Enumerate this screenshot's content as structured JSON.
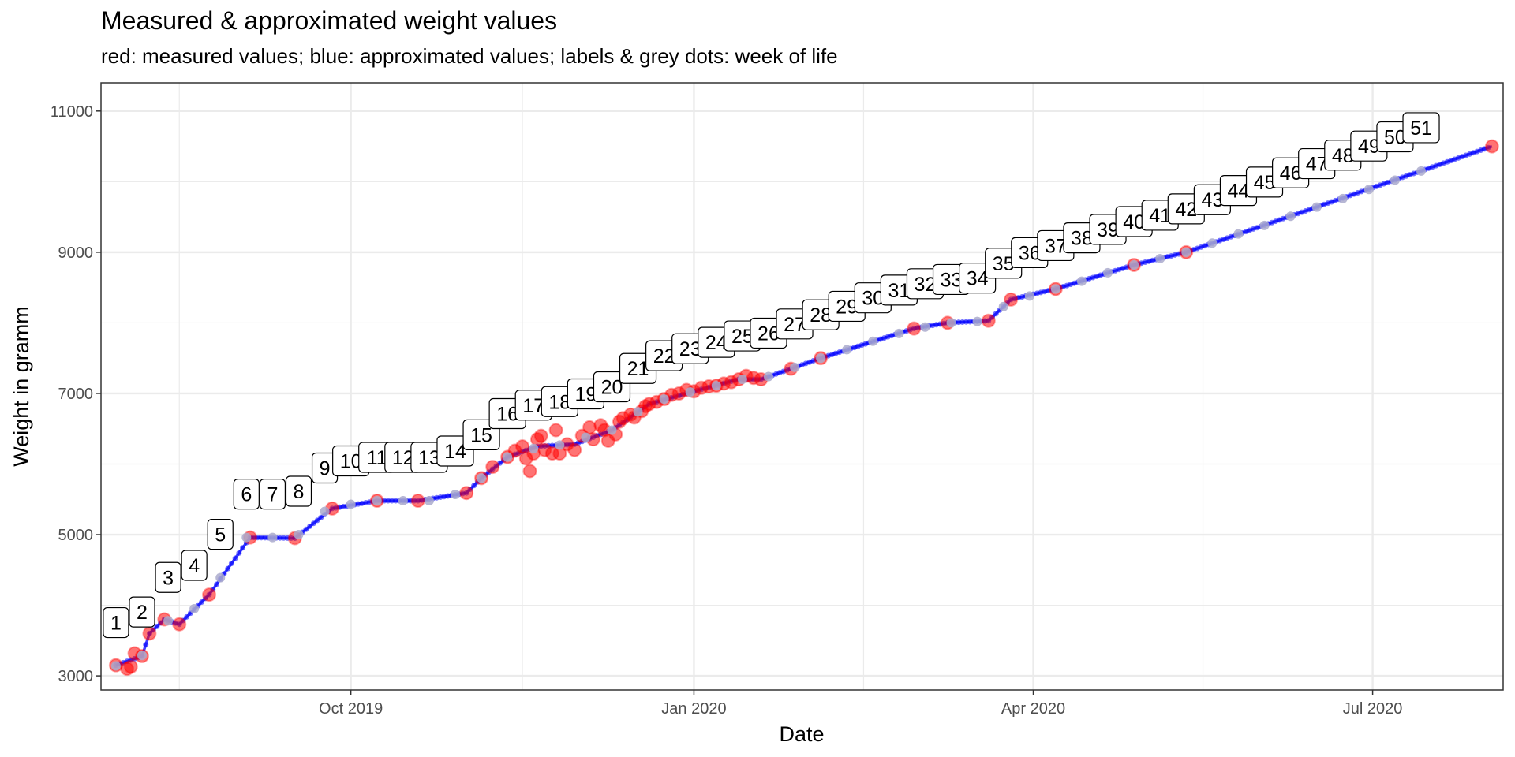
{
  "chart_data": {
    "type": "line",
    "title": "Measured & approximated weight values",
    "subtitle": "red: measured values; blue: approximated values; labels & grey dots: week of life",
    "xlabel": "Date",
    "ylabel": "Weight in gramm",
    "x_axis": {
      "type": "date",
      "range": [
        "2019-07-26",
        "2020-08-05"
      ],
      "ticks": [
        {
          "date": "2019-10-01",
          "label": "Oct 2019"
        },
        {
          "date": "2020-01-01",
          "label": "Jan 2020"
        },
        {
          "date": "2020-04-01",
          "label": "Apr 2020"
        },
        {
          "date": "2020-07-01",
          "label": "Jul 2020"
        }
      ]
    },
    "y_axis": {
      "range": [
        2800,
        11400
      ],
      "ticks": [
        3000,
        5000,
        7000,
        9000,
        11000
      ]
    },
    "grid": true,
    "colors": {
      "measured": "#ff0000",
      "approximated": "#0000ff",
      "week_dot": "#aaaacc",
      "grid": "#ebebeb",
      "panel_border": "#333333"
    },
    "series": [
      {
        "name": "measured",
        "points": [
          {
            "x": "2019-07-30",
            "y": 3150
          },
          {
            "x": "2019-08-02",
            "y": 3100
          },
          {
            "x": "2019-08-03",
            "y": 3130
          },
          {
            "x": "2019-08-04",
            "y": 3320
          },
          {
            "x": "2019-08-06",
            "y": 3280
          },
          {
            "x": "2019-08-08",
            "y": 3600
          },
          {
            "x": "2019-08-12",
            "y": 3800
          },
          {
            "x": "2019-08-16",
            "y": 3730
          },
          {
            "x": "2019-08-24",
            "y": 4150
          },
          {
            "x": "2019-09-04",
            "y": 4960
          },
          {
            "x": "2019-09-16",
            "y": 4950
          },
          {
            "x": "2019-09-26",
            "y": 5370
          },
          {
            "x": "2019-10-08",
            "y": 5480
          },
          {
            "x": "2019-10-19",
            "y": 5480
          },
          {
            "x": "2019-11-01",
            "y": 5590
          },
          {
            "x": "2019-11-05",
            "y": 5800
          },
          {
            "x": "2019-11-08",
            "y": 5960
          },
          {
            "x": "2019-11-12",
            "y": 6100
          },
          {
            "x": "2019-11-14",
            "y": 6190
          },
          {
            "x": "2019-11-16",
            "y": 6250
          },
          {
            "x": "2019-11-17",
            "y": 6080
          },
          {
            "x": "2019-11-18",
            "y": 5900
          },
          {
            "x": "2019-11-19",
            "y": 6150
          },
          {
            "x": "2019-11-20",
            "y": 6350
          },
          {
            "x": "2019-11-21",
            "y": 6400
          },
          {
            "x": "2019-11-22",
            "y": 6200
          },
          {
            "x": "2019-11-24",
            "y": 6150
          },
          {
            "x": "2019-11-25",
            "y": 6480
          },
          {
            "x": "2019-11-26",
            "y": 6150
          },
          {
            "x": "2019-11-28",
            "y": 6280
          },
          {
            "x": "2019-11-30",
            "y": 6200
          },
          {
            "x": "2019-12-02",
            "y": 6400
          },
          {
            "x": "2019-12-04",
            "y": 6520
          },
          {
            "x": "2019-12-05",
            "y": 6350
          },
          {
            "x": "2019-12-07",
            "y": 6550
          },
          {
            "x": "2019-12-08",
            "y": 6480
          },
          {
            "x": "2019-12-09",
            "y": 6330
          },
          {
            "x": "2019-12-11",
            "y": 6420
          },
          {
            "x": "2019-12-12",
            "y": 6600
          },
          {
            "x": "2019-12-13",
            "y": 6650
          },
          {
            "x": "2019-12-15",
            "y": 6700
          },
          {
            "x": "2019-12-16",
            "y": 6660
          },
          {
            "x": "2019-12-18",
            "y": 6750
          },
          {
            "x": "2019-12-19",
            "y": 6820
          },
          {
            "x": "2019-12-20",
            "y": 6850
          },
          {
            "x": "2019-12-22",
            "y": 6880
          },
          {
            "x": "2019-12-24",
            "y": 6920
          },
          {
            "x": "2019-12-26",
            "y": 6980
          },
          {
            "x": "2019-12-28",
            "y": 7000
          },
          {
            "x": "2019-12-30",
            "y": 7050
          },
          {
            "x": "2020-01-01",
            "y": 7030
          },
          {
            "x": "2020-01-03",
            "y": 7080
          },
          {
            "x": "2020-01-05",
            "y": 7100
          },
          {
            "x": "2020-01-07",
            "y": 7110
          },
          {
            "x": "2020-01-09",
            "y": 7140
          },
          {
            "x": "2020-01-11",
            "y": 7160
          },
          {
            "x": "2020-01-13",
            "y": 7200
          },
          {
            "x": "2020-01-15",
            "y": 7250
          },
          {
            "x": "2020-01-17",
            "y": 7220
          },
          {
            "x": "2020-01-19",
            "y": 7200
          },
          {
            "x": "2020-01-27",
            "y": 7350
          },
          {
            "x": "2020-02-04",
            "y": 7500
          },
          {
            "x": "2020-02-29",
            "y": 7920
          },
          {
            "x": "2020-03-09",
            "y": 8000
          },
          {
            "x": "2020-03-20",
            "y": 8030
          },
          {
            "x": "2020-03-26",
            "y": 8330
          },
          {
            "x": "2020-04-07",
            "y": 8480
          },
          {
            "x": "2020-04-28",
            "y": 8820
          },
          {
            "x": "2020-05-12",
            "y": 9000
          },
          {
            "x": "2020-08-02",
            "y": 10500
          }
        ]
      },
      {
        "name": "approximated",
        "points": [
          {
            "x": "2019-07-30",
            "y": 3150
          },
          {
            "x": "2019-08-06",
            "y": 3280
          },
          {
            "x": "2019-08-08",
            "y": 3600
          },
          {
            "x": "2019-08-12",
            "y": 3800
          },
          {
            "x": "2019-08-16",
            "y": 3730
          },
          {
            "x": "2019-08-24",
            "y": 4150
          },
          {
            "x": "2019-09-04",
            "y": 4960
          },
          {
            "x": "2019-09-16",
            "y": 4950
          },
          {
            "x": "2019-09-26",
            "y": 5370
          },
          {
            "x": "2019-10-08",
            "y": 5480
          },
          {
            "x": "2019-10-19",
            "y": 5480
          },
          {
            "x": "2019-11-01",
            "y": 5590
          },
          {
            "x": "2019-11-05",
            "y": 5800
          },
          {
            "x": "2019-11-12",
            "y": 6100
          },
          {
            "x": "2019-11-20",
            "y": 6250
          },
          {
            "x": "2019-11-30",
            "y": 6280
          },
          {
            "x": "2019-12-10",
            "y": 6480
          },
          {
            "x": "2019-12-20",
            "y": 6850
          },
          {
            "x": "2020-01-01",
            "y": 7030
          },
          {
            "x": "2020-01-13",
            "y": 7200
          },
          {
            "x": "2020-01-19",
            "y": 7200
          },
          {
            "x": "2020-01-27",
            "y": 7350
          },
          {
            "x": "2020-02-04",
            "y": 7500
          },
          {
            "x": "2020-02-29",
            "y": 7920
          },
          {
            "x": "2020-03-09",
            "y": 8000
          },
          {
            "x": "2020-03-20",
            "y": 8030
          },
          {
            "x": "2020-03-26",
            "y": 8330
          },
          {
            "x": "2020-04-07",
            "y": 8480
          },
          {
            "x": "2020-04-28",
            "y": 8820
          },
          {
            "x": "2020-05-12",
            "y": 9000
          },
          {
            "x": "2020-08-02",
            "y": 10500
          }
        ]
      }
    ],
    "week_labels": [
      {
        "week": "1",
        "x": "2019-07-30",
        "y": 3140
      },
      {
        "week": "2",
        "x": "2019-08-06",
        "y": 3290
      },
      {
        "week": "3",
        "x": "2019-08-13",
        "y": 3780
      },
      {
        "week": "4",
        "x": "2019-08-20",
        "y": 3950
      },
      {
        "week": "5",
        "x": "2019-08-27",
        "y": 4390
      },
      {
        "week": "6",
        "x": "2019-09-03",
        "y": 4960
      },
      {
        "week": "7",
        "x": "2019-09-10",
        "y": 4960
      },
      {
        "week": "8",
        "x": "2019-09-17",
        "y": 5000
      },
      {
        "week": "9",
        "x": "2019-09-24",
        "y": 5330
      },
      {
        "week": "10",
        "x": "2019-10-01",
        "y": 5430
      },
      {
        "week": "11",
        "x": "2019-10-08",
        "y": 5480
      },
      {
        "week": "12",
        "x": "2019-10-15",
        "y": 5480
      },
      {
        "week": "13",
        "x": "2019-10-22",
        "y": 5480
      },
      {
        "week": "14",
        "x": "2019-10-29",
        "y": 5570
      },
      {
        "week": "15",
        "x": "2019-11-05",
        "y": 5800
      },
      {
        "week": "16",
        "x": "2019-11-12",
        "y": 6100
      },
      {
        "week": "17",
        "x": "2019-11-19",
        "y": 6220
      },
      {
        "week": "18",
        "x": "2019-11-26",
        "y": 6270
      },
      {
        "week": "19",
        "x": "2019-12-03",
        "y": 6380
      },
      {
        "week": "20",
        "x": "2019-12-10",
        "y": 6480
      },
      {
        "week": "21",
        "x": "2019-12-17",
        "y": 6740
      },
      {
        "week": "22",
        "x": "2019-12-24",
        "y": 6920
      },
      {
        "week": "23",
        "x": "2019-12-31",
        "y": 7020
      },
      {
        "week": "24",
        "x": "2020-01-07",
        "y": 7110
      },
      {
        "week": "25",
        "x": "2020-01-14",
        "y": 7200
      },
      {
        "week": "26",
        "x": "2020-01-21",
        "y": 7240
      },
      {
        "week": "27",
        "x": "2020-01-28",
        "y": 7370
      },
      {
        "week": "28",
        "x": "2020-02-04",
        "y": 7500
      },
      {
        "week": "29",
        "x": "2020-02-11",
        "y": 7620
      },
      {
        "week": "30",
        "x": "2020-02-18",
        "y": 7740
      },
      {
        "week": "31",
        "x": "2020-02-25",
        "y": 7850
      },
      {
        "week": "32",
        "x": "2020-03-03",
        "y": 7940
      },
      {
        "week": "33",
        "x": "2020-03-10",
        "y": 8000
      },
      {
        "week": "34",
        "x": "2020-03-17",
        "y": 8020
      },
      {
        "week": "35",
        "x": "2020-03-24",
        "y": 8230
      },
      {
        "week": "36",
        "x": "2020-03-31",
        "y": 8380
      },
      {
        "week": "37",
        "x": "2020-04-07",
        "y": 8480
      },
      {
        "week": "38",
        "x": "2020-04-14",
        "y": 8590
      },
      {
        "week": "39",
        "x": "2020-04-21",
        "y": 8710
      },
      {
        "week": "40",
        "x": "2020-04-28",
        "y": 8820
      },
      {
        "week": "41",
        "x": "2020-05-05",
        "y": 8910
      },
      {
        "week": "42",
        "x": "2020-05-12",
        "y": 9000
      },
      {
        "week": "43",
        "x": "2020-05-19",
        "y": 9130
      },
      {
        "week": "44",
        "x": "2020-05-26",
        "y": 9260
      },
      {
        "week": "45",
        "x": "2020-06-02",
        "y": 9380
      },
      {
        "week": "46",
        "x": "2020-06-09",
        "y": 9510
      },
      {
        "week": "47",
        "x": "2020-06-16",
        "y": 9640
      },
      {
        "week": "48",
        "x": "2020-06-23",
        "y": 9760
      },
      {
        "week": "49",
        "x": "2020-06-30",
        "y": 9890
      },
      {
        "week": "50",
        "x": "2020-07-07",
        "y": 10020
      },
      {
        "week": "51",
        "x": "2020-07-14",
        "y": 10150
      }
    ]
  }
}
